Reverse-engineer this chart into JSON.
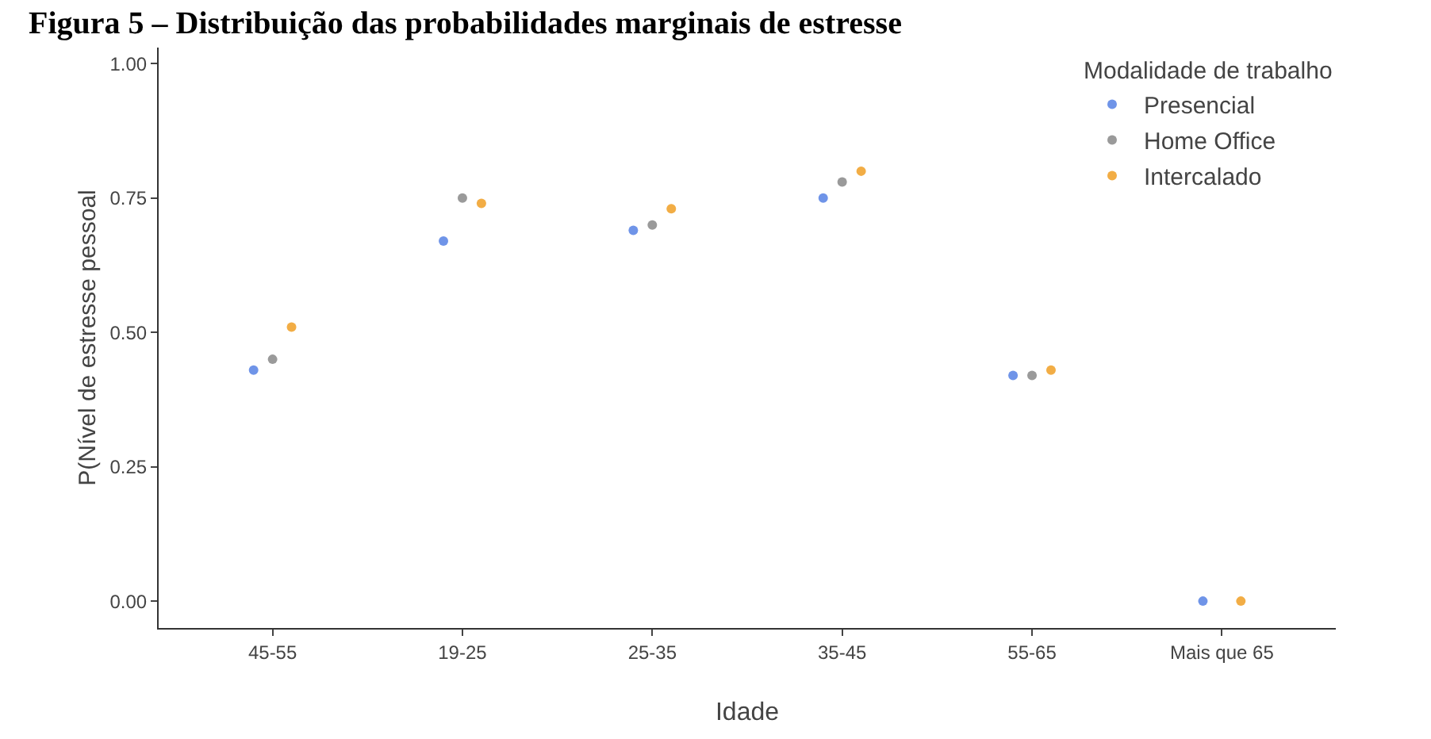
{
  "chart_data": {
    "type": "scatter",
    "title": "Figura 5 – Distribuição das probabilidades marginais de estresse",
    "xlabel": "Idade",
    "ylabel": "P(Nível de estresse pessoal",
    "legend_title": "Modalidade de trabalho",
    "categories": [
      "45-55",
      "19-25",
      "25-35",
      "35-45",
      "55-65",
      "Mais que 65"
    ],
    "series": [
      {
        "name": "Presencial",
        "color": "#6f94e8",
        "values": [
          0.43,
          0.67,
          0.69,
          0.75,
          0.42,
          0
        ]
      },
      {
        "name": "Home Office",
        "color": "#9a9a9a",
        "values": [
          0.45,
          0.75,
          0.7,
          0.78,
          0.42,
          null
        ]
      },
      {
        "name": "Intercalado",
        "color": "#f2ad45",
        "values": [
          0.51,
          0.74,
          0.73,
          0.8,
          0.43,
          0
        ]
      }
    ],
    "ylim": [
      -0.05,
      1.03
    ],
    "yticks": [
      {
        "value": 0,
        "label": "0.00"
      },
      {
        "value": 0.25,
        "label": "0.25"
      },
      {
        "value": 0.5,
        "label": "0.50"
      },
      {
        "value": 0.75,
        "label": "0.75"
      },
      {
        "value": 1,
        "label": "1.00"
      }
    ],
    "grid": false,
    "legend": "top right",
    "marker": "circle"
  }
}
